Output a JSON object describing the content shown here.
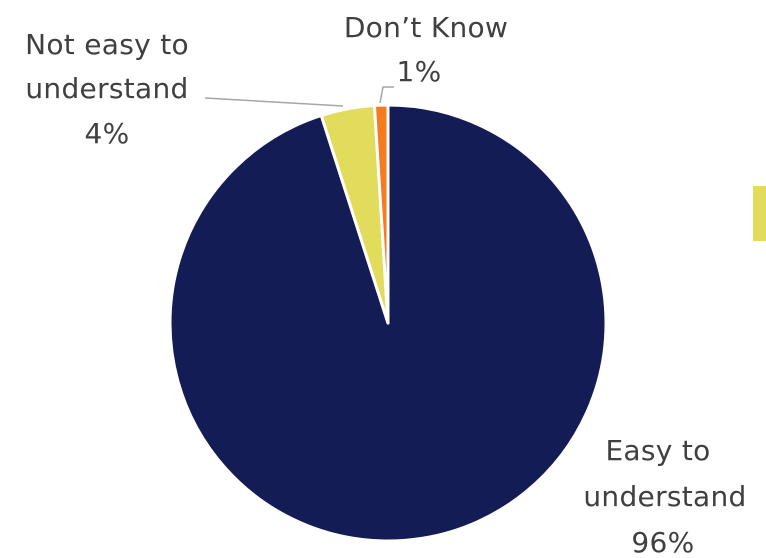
{
  "chart_data": {
    "type": "pie",
    "title": "",
    "slices": [
      {
        "label_lines": [
          "Easy to",
          "understand"
        ],
        "value": 96,
        "value_text": "96%",
        "color": "#131c55"
      },
      {
        "label_lines": [
          "Not easy to",
          "understand"
        ],
        "value": 4,
        "value_text": "4%",
        "color": "#e1dc5b"
      },
      {
        "label_lines": [
          "Don’t Know"
        ],
        "value": 1,
        "value_text": "1%",
        "color": "#f47b20"
      }
    ],
    "legend": {
      "visible_swatch_color": "#e1dc5b"
    }
  }
}
